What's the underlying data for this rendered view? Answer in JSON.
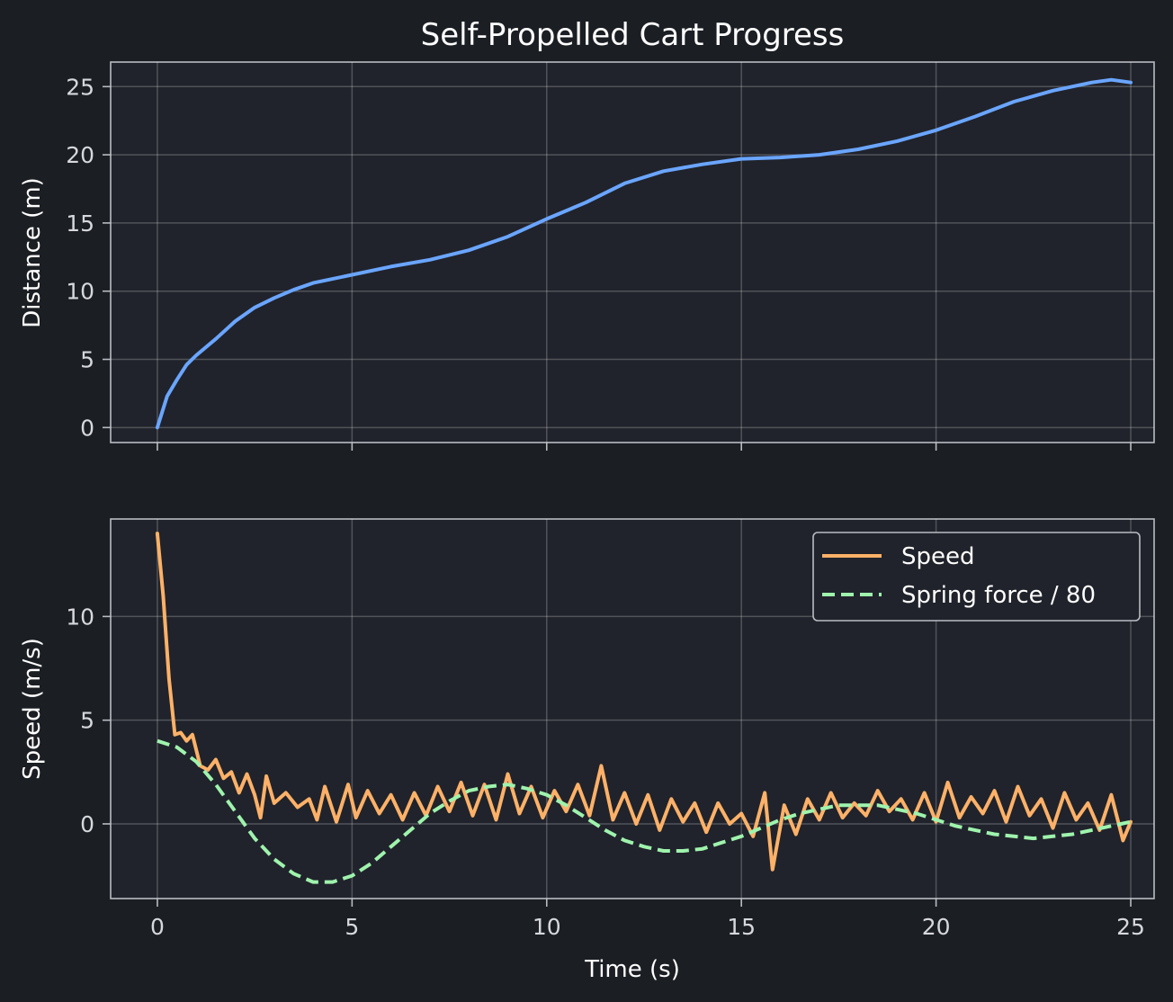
{
  "chart_data": [
    {
      "type": "line",
      "title": "Self-Propelled Cart Progress",
      "xlabel": "",
      "ylabel": "Distance (m)",
      "xlim": [
        -1.2,
        25.6
      ],
      "ylim": [
        -1.1,
        26.8
      ],
      "xticks": [
        0,
        5,
        10,
        15,
        20,
        25
      ],
      "yticks": [
        0,
        5,
        10,
        15,
        20,
        25
      ],
      "grid": true,
      "series": [
        {
          "color": "#6aa5ff",
          "x": [
            0,
            0.25,
            0.5,
            0.75,
            1,
            1.5,
            2,
            2.5,
            3,
            3.5,
            4,
            4.5,
            5,
            6,
            7,
            8,
            9,
            10,
            11,
            12,
            13,
            14,
            15,
            16,
            17,
            18,
            19,
            20,
            21,
            22,
            23,
            24,
            24.5,
            25
          ],
          "y": [
            0,
            2.3,
            3.5,
            4.6,
            5.3,
            6.5,
            7.8,
            8.8,
            9.5,
            10.1,
            10.6,
            10.9,
            11.2,
            11.8,
            12.3,
            13.0,
            14.0,
            15.3,
            16.5,
            17.9,
            18.8,
            19.3,
            19.7,
            19.8,
            20.0,
            20.4,
            21.0,
            21.8,
            22.8,
            23.9,
            24.7,
            25.3,
            25.5,
            25.3
          ]
        }
      ]
    },
    {
      "type": "line",
      "xlabel": "Time (s)",
      "ylabel": "Speed (m/s)",
      "xlim": [
        -1.2,
        25.6
      ],
      "ylim": [
        -3.6,
        14.7
      ],
      "xticks": [
        0,
        5,
        10,
        15,
        20,
        25
      ],
      "yticks": [
        0,
        5,
        10
      ],
      "grid": true,
      "legend": "top-right",
      "series": [
        {
          "name": "Speed",
          "color": "#fdb168",
          "style": "solid",
          "x": [
            0,
            0.15,
            0.3,
            0.45,
            0.6,
            0.75,
            0.9,
            1.1,
            1.3,
            1.5,
            1.7,
            1.9,
            2.1,
            2.3,
            2.5,
            2.65,
            2.8,
            3.0,
            3.3,
            3.6,
            3.9,
            4.1,
            4.3,
            4.6,
            4.9,
            5.1,
            5.4,
            5.7,
            6.0,
            6.3,
            6.6,
            6.9,
            7.2,
            7.5,
            7.8,
            8.1,
            8.4,
            8.7,
            9.0,
            9.3,
            9.6,
            9.9,
            10.2,
            10.5,
            10.8,
            11.1,
            11.4,
            11.7,
            12.0,
            12.3,
            12.6,
            12.9,
            13.2,
            13.5,
            13.8,
            14.1,
            14.4,
            14.7,
            15.0,
            15.3,
            15.6,
            15.8,
            16.1,
            16.4,
            16.7,
            17.0,
            17.3,
            17.6,
            17.9,
            18.2,
            18.5,
            18.8,
            19.1,
            19.4,
            19.7,
            20.0,
            20.3,
            20.6,
            20.9,
            21.2,
            21.5,
            21.8,
            22.1,
            22.4,
            22.7,
            23.0,
            23.3,
            23.6,
            23.9,
            24.2,
            24.5,
            24.8,
            25.0
          ],
          "y": [
            14.0,
            11.0,
            7.0,
            4.3,
            4.4,
            4.0,
            4.3,
            2.8,
            2.6,
            3.1,
            2.2,
            2.5,
            1.5,
            2.4,
            1.4,
            0.3,
            2.3,
            1.0,
            1.5,
            0.8,
            1.2,
            0.2,
            1.8,
            0.1,
            1.9,
            0.3,
            1.6,
            0.5,
            1.4,
            0.2,
            1.5,
            0.4,
            1.8,
            0.6,
            2.0,
            0.4,
            1.9,
            0.2,
            2.4,
            0.5,
            1.8,
            0.3,
            1.6,
            0.6,
            1.9,
            0.4,
            2.8,
            0.2,
            1.5,
            0.0,
            1.4,
            -0.3,
            1.2,
            0.1,
            1.0,
            -0.4,
            1.0,
            0.0,
            0.5,
            -0.6,
            1.5,
            -2.2,
            0.9,
            -0.5,
            1.2,
            0.2,
            1.5,
            0.3,
            1.0,
            0.4,
            1.6,
            0.6,
            1.2,
            0.2,
            1.5,
            0.1,
            2.0,
            0.3,
            1.3,
            0.5,
            1.6,
            0.1,
            1.8,
            0.4,
            1.2,
            -0.2,
            1.5,
            0.2,
            1.0,
            -0.3,
            1.4,
            -0.8,
            0.1
          ]
        },
        {
          "name": "Spring force / 80",
          "color": "#9ff3ad",
          "style": "dashed",
          "x": [
            0,
            0.5,
            1,
            1.5,
            2,
            2.5,
            3,
            3.5,
            4,
            4.5,
            5,
            5.5,
            6,
            6.5,
            7,
            7.5,
            8,
            8.5,
            9,
            9.5,
            10,
            10.5,
            11,
            11.5,
            12,
            12.5,
            13,
            13.5,
            14,
            14.5,
            15,
            15.5,
            16,
            16.5,
            17,
            17.5,
            18,
            18.5,
            19,
            19.5,
            20,
            20.5,
            21,
            21.5,
            22,
            22.5,
            23,
            23.5,
            24,
            24.5,
            25
          ],
          "y": [
            4.0,
            3.7,
            3.0,
            1.9,
            0.6,
            -0.7,
            -1.7,
            -2.4,
            -2.8,
            -2.8,
            -2.5,
            -1.9,
            -1.1,
            -0.3,
            0.5,
            1.1,
            1.6,
            1.8,
            1.9,
            1.7,
            1.4,
            0.9,
            0.3,
            -0.3,
            -0.8,
            -1.1,
            -1.3,
            -1.3,
            -1.2,
            -0.9,
            -0.6,
            -0.2,
            0.2,
            0.5,
            0.7,
            0.9,
            0.9,
            0.9,
            0.7,
            0.5,
            0.2,
            -0.1,
            -0.3,
            -0.5,
            -0.6,
            -0.7,
            -0.6,
            -0.5,
            -0.3,
            -0.1,
            0.1
          ]
        }
      ]
    }
  ]
}
